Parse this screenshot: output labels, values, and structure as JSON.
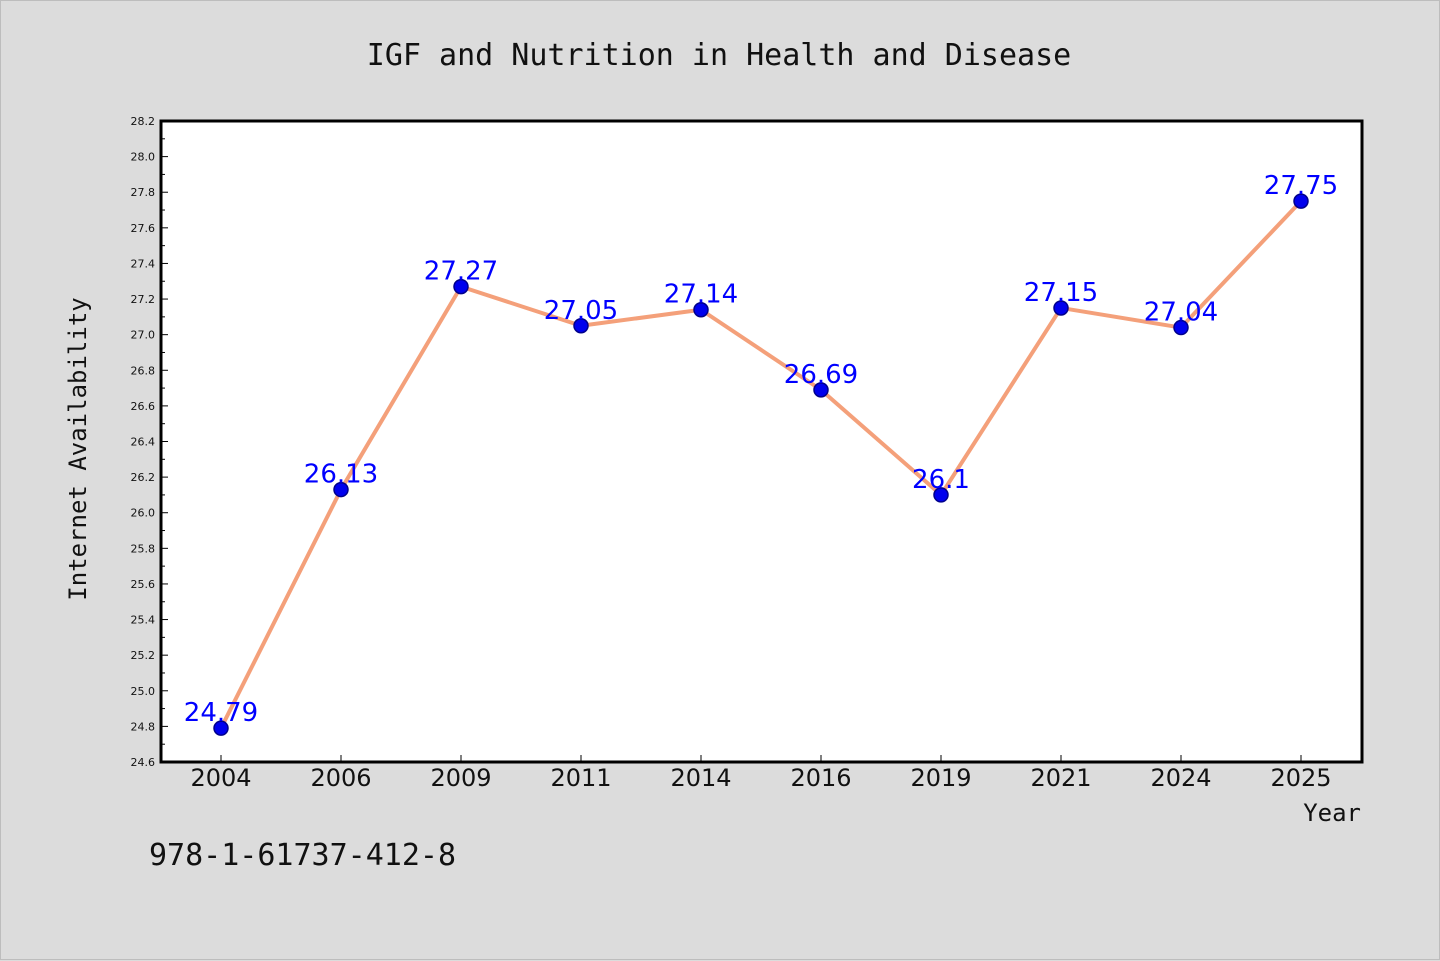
{
  "chart_data": {
    "type": "line",
    "title": "IGF and Nutrition in Health and Disease",
    "xlabel": "Year",
    "ylabel": "Internet Availability",
    "categories": [
      "2004",
      "2006",
      "2009",
      "2011",
      "2014",
      "2016",
      "2019",
      "2021",
      "2024",
      "2025"
    ],
    "series": [
      {
        "values": [
          24.79,
          26.13,
          27.27,
          27.05,
          27.14,
          26.69,
          26.1,
          27.15,
          27.04,
          27.75
        ],
        "data_labels": [
          "24.79",
          "26.13",
          "27.27",
          "27.05",
          "27.14",
          "26.69",
          "26.1",
          "27.15",
          "27.04",
          "27.75"
        ],
        "line_color": "#f4a07a",
        "marker_color": "#0000ee",
        "label_color": "#0000ff"
      }
    ],
    "ylim": [
      24.6,
      28.2
    ],
    "yticks": [
      "24.6",
      "24.8",
      "25.0",
      "25.2",
      "25.4",
      "25.6",
      "25.8",
      "26.0",
      "26.2",
      "26.4",
      "26.6",
      "26.8",
      "27.0",
      "27.2",
      "27.4",
      "27.6",
      "27.8",
      "28.0",
      "28.2"
    ],
    "grid": false,
    "legend": "none"
  },
  "footer_text": "978-1-61737-412-8",
  "colors": {
    "background": "#dcdcdc",
    "plot_background": "#ffffff"
  }
}
